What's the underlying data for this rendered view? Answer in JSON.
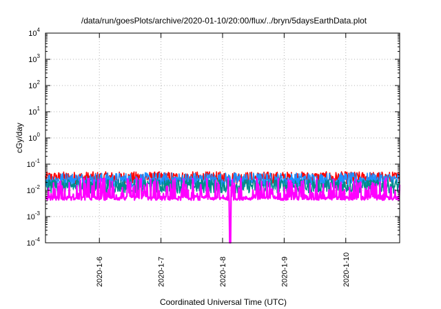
{
  "chart_data": {
    "type": "line",
    "title": "/data/run/goesPlots/archive/2020-01-10/20:00/flux/../bryn/5daysEarthData.plot",
    "xlabel": "Coordinated Universal Time (UTC)",
    "ylabel": "cGy/day",
    "y_scale": "log",
    "ylim": [
      0.0001,
      10000
    ],
    "xlim": [
      "2020-01-05T03:00",
      "2020-01-10T21:00"
    ],
    "grid": true,
    "legend": "none",
    "y_ticks": [
      {
        "base": "10",
        "exp": "-4"
      },
      {
        "base": "10",
        "exp": "-3"
      },
      {
        "base": "10",
        "exp": "-2"
      },
      {
        "base": "10",
        "exp": "-1"
      },
      {
        "base": "10",
        "exp": "0"
      },
      {
        "base": "10",
        "exp": "1"
      },
      {
        "base": "10",
        "exp": "2"
      },
      {
        "base": "10",
        "exp": "3"
      },
      {
        "base": "10",
        "exp": "4"
      }
    ],
    "x_ticks": [
      "2020-1-6",
      "2020-1-7",
      "2020-1-8",
      "2020-1-9",
      "2020-1-10"
    ],
    "series": [
      {
        "color": "#ff0000",
        "x_start": "2020-01-05T03:00",
        "x_end": "2020-01-10T21:00",
        "typical": 0.03,
        "range": [
          0.018,
          0.06
        ]
      },
      {
        "color": "#1e90ff",
        "x_start": "2020-01-05T03:00",
        "x_end": "2020-01-10T21:00",
        "typical": 0.025,
        "range": [
          0.012,
          0.05
        ]
      },
      {
        "color": "#008b8b",
        "x_start": "2020-01-05T03:00",
        "x_end": "2020-01-10T21:00",
        "typical": 0.015,
        "range": [
          0.006,
          0.025
        ]
      },
      {
        "color": "#ff00ff",
        "x_start": "2020-01-05T03:00",
        "x_end": "2020-01-10T21:00",
        "typical": 0.005,
        "range": [
          0.0001,
          0.03
        ],
        "dip": {
          "x": "2020-01-08T03:00",
          "y": 0.0001
        }
      }
    ]
  }
}
